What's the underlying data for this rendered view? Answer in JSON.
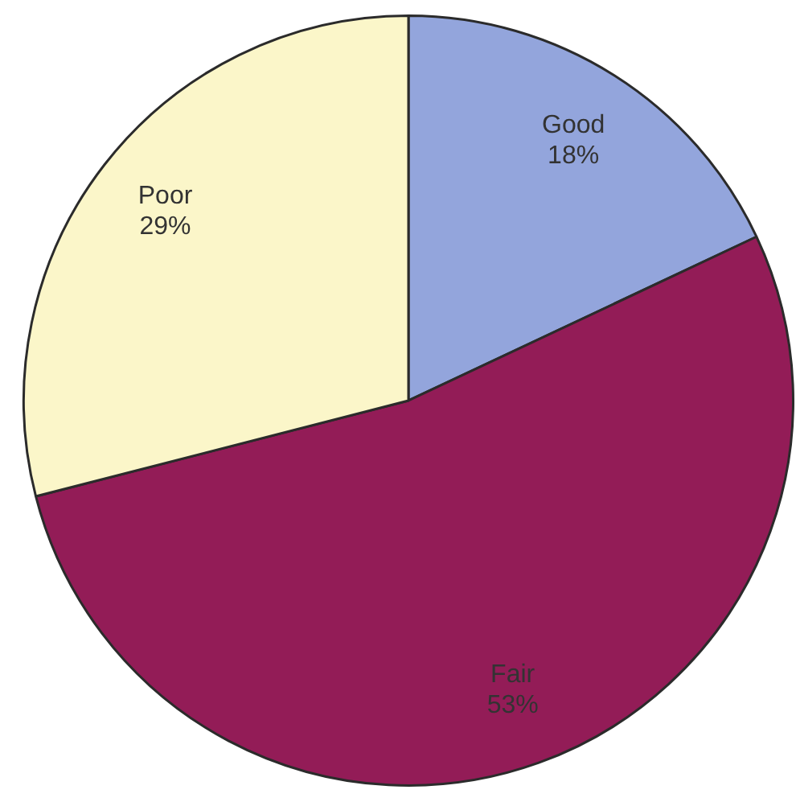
{
  "chart_data": {
    "type": "pie",
    "categories": [
      "Good",
      "Fair",
      "Poor"
    ],
    "values": [
      18,
      53,
      29
    ],
    "colors": [
      "#93a5dc",
      "#931c57",
      "#fbf6c9"
    ],
    "value_labels": [
      "18%",
      "53%",
      "29%"
    ]
  }
}
